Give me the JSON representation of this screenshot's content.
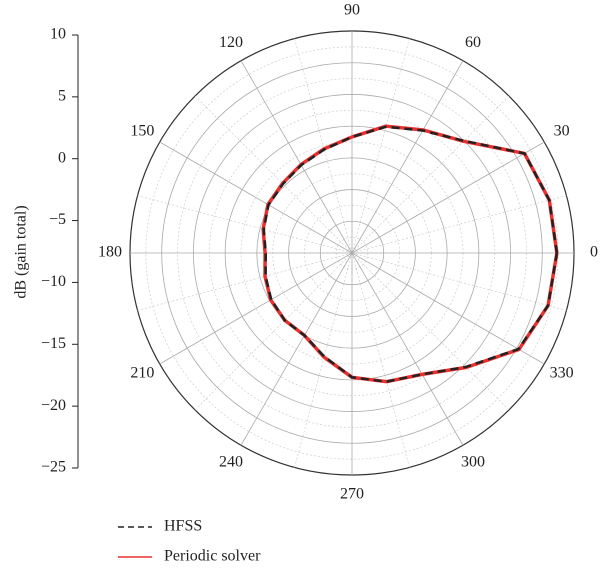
{
  "chart_data": {
    "type": "polar",
    "y_label": "dB (gain total)",
    "x": [
      0,
      15,
      30,
      45,
      60,
      75,
      90,
      105,
      120,
      135,
      150,
      165,
      180,
      195,
      210,
      225,
      240,
      255,
      270,
      285,
      300,
      315,
      330,
      345,
      360
    ],
    "series": [
      {
        "name": "HFSS",
        "color": "#222222",
        "dash": true,
        "values": [
          7.3,
          7.2,
          6.4,
          0,
          -2.7,
          -4.4,
          -6.7,
          -8.1,
          -9,
          -9.6,
          -9.8,
          -10.6,
          -11.4,
          -10.9,
          -10.3,
          -10,
          -10,
          -8.1,
          -5.4,
          -4,
          -2.9,
          0.4,
          5.3,
          7,
          7.3
        ]
      },
      {
        "name": "Periodic solver",
        "color": "#e8312f",
        "dash": false,
        "values": [
          7.3,
          7.2,
          6.4,
          -0.1,
          -2.6,
          -4.3,
          -6.7,
          -8,
          -8.9,
          -9.5,
          -9.7,
          -10.5,
          -11.3,
          -10.8,
          -10.2,
          -10,
          -10,
          -8,
          -5.4,
          -4,
          -2.9,
          0.5,
          5.4,
          7,
          7.3
        ]
      }
    ],
    "ylim": [
      -25,
      10
    ],
    "yticks": [
      {
        "value": -25,
        "label": "−25"
      },
      {
        "value": -20,
        "label": "−20"
      },
      {
        "value": -15,
        "label": "−15"
      },
      {
        "value": -10,
        "label": "−10"
      },
      {
        "value": -5,
        "label": "−5"
      },
      0,
      5,
      10
    ],
    "xticks": [
      0,
      30,
      60,
      90,
      120,
      150,
      180,
      210,
      240,
      270,
      300,
      330
    ],
    "grid": true
  }
}
